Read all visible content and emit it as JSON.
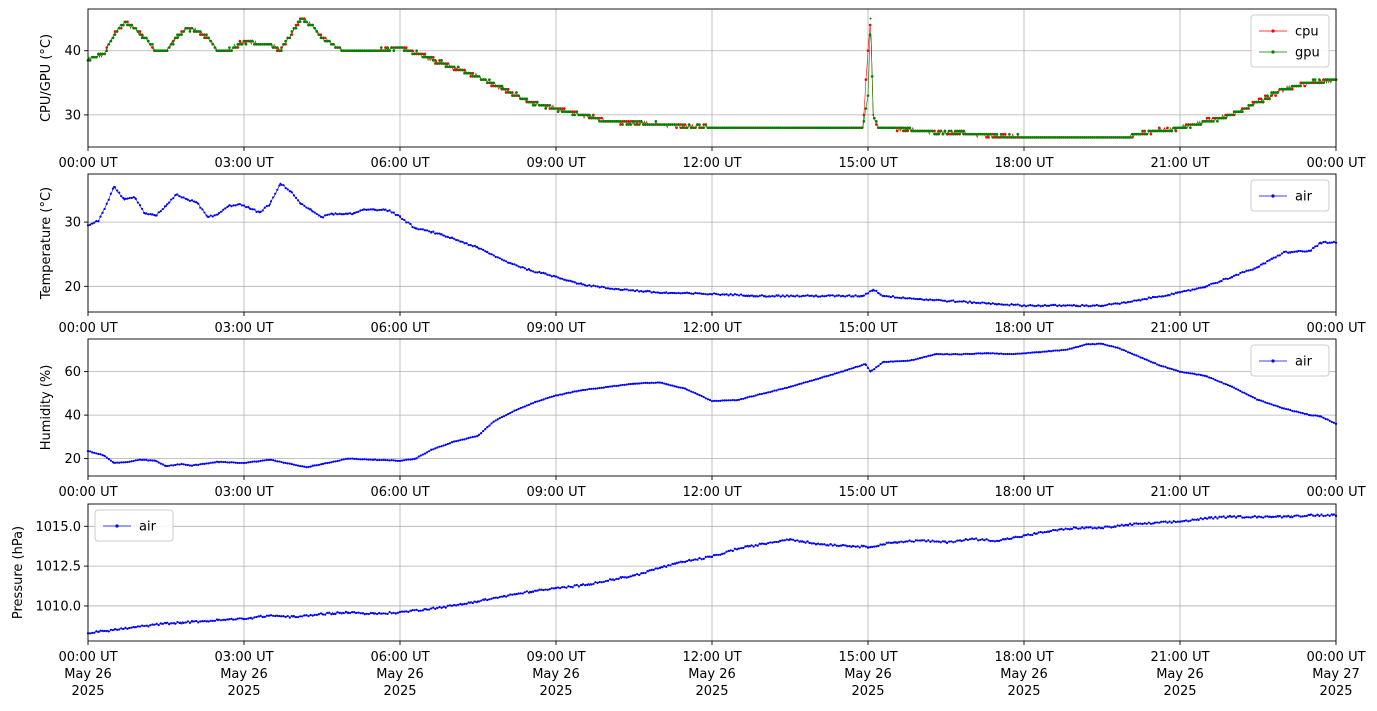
{
  "colors": {
    "cpu": "#ff0000",
    "gpu": "#008000",
    "air": "#0000ff",
    "grid": "#b0b0b0"
  },
  "chart_data": [
    {
      "type": "line",
      "ylabel": "CPU/GPU (°C)",
      "ylim": [
        25,
        46.5
      ],
      "yticks": [
        30,
        40
      ],
      "ytick_labels": [
        "30",
        "40"
      ],
      "xlim": [
        0,
        24
      ],
      "xticks": [
        0,
        3,
        6,
        9,
        12,
        15,
        18,
        21,
        24
      ],
      "xtick_labels": [
        "00:00 UT",
        "03:00 UT",
        "06:00 UT",
        "09:00 UT",
        "12:00 UT",
        "15:00 UT",
        "18:00 UT",
        "21:00 UT",
        "00:00 UT"
      ],
      "legend": "top-right",
      "grid": true,
      "series": [
        {
          "name": "cpu",
          "color": "#ff0000",
          "x": [
            0,
            0.3,
            0.5,
            0.7,
            0.9,
            1.1,
            1.3,
            1.5,
            1.7,
            1.9,
            2.1,
            2.3,
            2.5,
            2.7,
            2.9,
            3.1,
            3.3,
            3.5,
            3.7,
            3.9,
            4.1,
            4.3,
            4.5,
            4.7,
            4.9,
            5.1,
            5.5,
            6.0,
            6.2,
            6.5,
            7.0,
            7.5,
            8.0,
            8.5,
            9.0,
            9.5,
            10.0,
            11.0,
            12.0,
            13.0,
            14.0,
            14.9,
            15.0,
            15.05,
            15.1,
            15.2,
            15.5,
            16.0,
            17.0,
            18.0,
            19.0,
            20.0,
            20.5,
            21.0,
            21.5,
            22.0,
            22.5,
            23.0,
            23.5,
            24.0
          ],
          "y": [
            38.5,
            39.5,
            42.5,
            44.5,
            43.5,
            42,
            40,
            40,
            42,
            43.5,
            43,
            42,
            40,
            40,
            41,
            41.5,
            41,
            41,
            40,
            42.5,
            45,
            44,
            42,
            41,
            40,
            40,
            40,
            40.5,
            40,
            39,
            37.5,
            36,
            34,
            32,
            31,
            30,
            29,
            28.5,
            28,
            28,
            28,
            28,
            40,
            45,
            30,
            28,
            28,
            27.5,
            27,
            26.5,
            26.5,
            26.5,
            27.5,
            28,
            29,
            30,
            32,
            34,
            35,
            35.5
          ]
        },
        {
          "name": "gpu",
          "color": "#008000",
          "x": [
            0,
            0.3,
            0.5,
            0.7,
            0.9,
            1.1,
            1.3,
            1.5,
            1.7,
            1.9,
            2.1,
            2.3,
            2.5,
            2.7,
            2.9,
            3.1,
            3.3,
            3.5,
            3.7,
            3.9,
            4.1,
            4.3,
            4.5,
            4.7,
            4.9,
            5.1,
            5.5,
            6.0,
            6.2,
            6.5,
            7.0,
            7.5,
            8.0,
            8.5,
            9.0,
            9.5,
            10.0,
            11.0,
            12.0,
            13.0,
            14.0,
            14.9,
            15.0,
            15.05,
            15.1,
            15.2,
            15.5,
            16.0,
            17.0,
            18.0,
            19.0,
            20.0,
            20.5,
            21.0,
            21.5,
            22.0,
            22.5,
            23.0,
            23.5,
            24.0
          ],
          "y": [
            38.5,
            39.5,
            42.5,
            44.5,
            43.5,
            42,
            40,
            40,
            42,
            43.5,
            43,
            42,
            40,
            40,
            41,
            41.5,
            41,
            41,
            40,
            42.5,
            45,
            44,
            42,
            41,
            40,
            40,
            40,
            40.5,
            40,
            39,
            37.5,
            36,
            34,
            32,
            31,
            30,
            29,
            28.5,
            28,
            28,
            28,
            28,
            33,
            45,
            30,
            28,
            28,
            27.5,
            27,
            26.5,
            26.5,
            26.5,
            27.5,
            28,
            29,
            30,
            32,
            34,
            35,
            35.5
          ]
        }
      ]
    },
    {
      "type": "line",
      "ylabel": "Temperature (°C)",
      "ylim": [
        16,
        37.5
      ],
      "yticks": [
        20,
        30
      ],
      "ytick_labels": [
        "20",
        "30"
      ],
      "xlim": [
        0,
        24
      ],
      "xticks": [
        0,
        3,
        6,
        9,
        12,
        15,
        18,
        21,
        24
      ],
      "xtick_labels": [
        "00:00 UT",
        "03:00 UT",
        "06:00 UT",
        "09:00 UT",
        "12:00 UT",
        "15:00 UT",
        "18:00 UT",
        "21:00 UT",
        "00:00 UT"
      ],
      "legend": "top-right",
      "grid": true,
      "series": [
        {
          "name": "air",
          "color": "#0000ff",
          "x": [
            0,
            0.2,
            0.4,
            0.5,
            0.7,
            0.9,
            1.1,
            1.3,
            1.5,
            1.7,
            1.9,
            2.1,
            2.3,
            2.5,
            2.7,
            2.9,
            3.1,
            3.3,
            3.5,
            3.7,
            3.9,
            4.1,
            4.3,
            4.5,
            4.7,
            4.9,
            5.1,
            5.3,
            5.5,
            5.8,
            6.0,
            6.3,
            6.6,
            7.0,
            7.5,
            8.0,
            8.5,
            9.0,
            9.5,
            10.0,
            11.0,
            12.0,
            13.0,
            14.0,
            14.9,
            15.1,
            15.3,
            16.0,
            17.0,
            18.0,
            19.0,
            19.5,
            20.0,
            20.5,
            21.0,
            21.5,
            22.0,
            22.5,
            23.0,
            23.5,
            23.7,
            24.0
          ],
          "y": [
            29.5,
            30.2,
            33.5,
            35.5,
            33.5,
            33.8,
            31.3,
            31.0,
            32.5,
            34.3,
            33.6,
            33.0,
            30.8,
            31.2,
            32.5,
            32.8,
            32.2,
            31.5,
            32.8,
            36.0,
            34.8,
            32.8,
            31.8,
            30.8,
            31.3,
            31.2,
            31.3,
            32.0,
            32.0,
            31.8,
            30.8,
            29.0,
            28.5,
            27.5,
            26.0,
            24.0,
            22.5,
            21.5,
            20.3,
            19.7,
            19.0,
            18.8,
            18.5,
            18.5,
            18.5,
            19.5,
            18.5,
            18.0,
            17.5,
            17.0,
            17.0,
            17.0,
            17.5,
            18.3,
            19.0,
            20.0,
            21.5,
            23.0,
            25.3,
            25.5,
            26.8,
            26.8
          ]
        }
      ]
    },
    {
      "type": "line",
      "ylabel": "Humidity (%)",
      "ylim": [
        12,
        75
      ],
      "yticks": [
        20,
        40,
        60
      ],
      "ytick_labels": [
        "20",
        "40",
        "60"
      ],
      "xlim": [
        0,
        24
      ],
      "xticks": [
        0,
        3,
        6,
        9,
        12,
        15,
        18,
        21,
        24
      ],
      "xtick_labels": [
        "00:00 UT",
        "03:00 UT",
        "06:00 UT",
        "09:00 UT",
        "12:00 UT",
        "15:00 UT",
        "18:00 UT",
        "21:00 UT",
        "00:00 UT"
      ],
      "legend": "top-right",
      "grid": true,
      "series": [
        {
          "name": "air",
          "color": "#0000ff",
          "x": [
            0,
            0.3,
            0.5,
            0.8,
            1.0,
            1.3,
            1.5,
            1.8,
            2.0,
            2.5,
            3.0,
            3.5,
            3.8,
            4.2,
            4.5,
            5.0,
            5.5,
            6.0,
            6.3,
            6.6,
            7.0,
            7.5,
            7.8,
            8.2,
            8.6,
            9.0,
            9.5,
            10.0,
            10.5,
            11.0,
            11.5,
            12.0,
            12.5,
            13.0,
            13.5,
            14.0,
            14.5,
            14.95,
            15.05,
            15.3,
            15.8,
            16.3,
            16.8,
            17.3,
            17.8,
            18.3,
            18.8,
            19.2,
            19.5,
            19.8,
            20.2,
            20.6,
            21.0,
            21.5,
            22.0,
            22.5,
            23.0,
            23.5,
            23.7,
            24.0
          ],
          "y": [
            23.5,
            21.5,
            18.0,
            18.5,
            19.5,
            19.0,
            16.5,
            17.5,
            16.8,
            18.5,
            18.0,
            19.5,
            18.0,
            16.0,
            17.5,
            20.0,
            19.5,
            19.0,
            20.0,
            24.0,
            27.5,
            30.5,
            37.0,
            42.0,
            46.0,
            49.0,
            51.5,
            53.0,
            54.5,
            55.0,
            52.0,
            46.5,
            47.0,
            50.0,
            53.0,
            56.5,
            60.0,
            63.5,
            60.0,
            64.5,
            65.0,
            68.0,
            68.0,
            68.5,
            68.0,
            69.0,
            70.0,
            72.5,
            72.8,
            71.0,
            67.0,
            63.0,
            60.0,
            58.0,
            53.0,
            47.0,
            43.0,
            40.0,
            39.5,
            36.0
          ]
        }
      ]
    },
    {
      "type": "line",
      "ylabel": "Pressure (hPa)",
      "ylim": [
        1007.8,
        1016.4
      ],
      "yticks": [
        1010.0,
        1012.5,
        1015.0
      ],
      "ytick_labels": [
        "1010.0",
        "1012.5",
        "1015.0"
      ],
      "xlim": [
        0,
        24
      ],
      "xticks": [
        0,
        3,
        6,
        9,
        12,
        15,
        18,
        21,
        24
      ],
      "xtick_labels": [
        "00:00 UT",
        "03:00 UT",
        "06:00 UT",
        "09:00 UT",
        "12:00 UT",
        "15:00 UT",
        "18:00 UT",
        "21:00 UT",
        "00:00 UT"
      ],
      "xtick_dates": [
        "May 26",
        "May 26",
        "May 26",
        "May 26",
        "May 26",
        "May 26",
        "May 26",
        "May 26",
        "May 27"
      ],
      "xtick_years": [
        "2025",
        "2025",
        "2025",
        "2025",
        "2025",
        "2025",
        "2025",
        "2025",
        "2025"
      ],
      "legend": "top-left",
      "grid": true,
      "series": [
        {
          "name": "air",
          "color": "#0000ff",
          "x": [
            0,
            0.5,
            1.0,
            1.5,
            2.0,
            2.5,
            3.0,
            3.5,
            4.0,
            4.5,
            5.0,
            5.5,
            6.0,
            6.5,
            7.0,
            7.5,
            8.0,
            8.5,
            9.0,
            9.5,
            10.0,
            10.5,
            11.0,
            11.5,
            12.0,
            12.5,
            13.0,
            13.5,
            14.0,
            14.5,
            15.0,
            15.5,
            16.0,
            16.5,
            17.0,
            17.5,
            18.0,
            18.5,
            19.0,
            19.5,
            20.0,
            20.5,
            21.0,
            21.5,
            22.0,
            22.5,
            23.0,
            23.5,
            24.0
          ],
          "y": [
            1008.3,
            1008.5,
            1008.7,
            1008.9,
            1009.0,
            1009.1,
            1009.2,
            1009.4,
            1009.3,
            1009.5,
            1009.6,
            1009.5,
            1009.6,
            1009.8,
            1010.0,
            1010.3,
            1010.6,
            1010.9,
            1011.1,
            1011.3,
            1011.6,
            1011.9,
            1012.4,
            1012.8,
            1013.1,
            1013.6,
            1013.9,
            1014.2,
            1013.9,
            1013.8,
            1013.7,
            1014.0,
            1014.1,
            1014.0,
            1014.2,
            1014.1,
            1014.4,
            1014.7,
            1014.9,
            1014.9,
            1015.1,
            1015.2,
            1015.3,
            1015.5,
            1015.6,
            1015.6,
            1015.6,
            1015.7,
            1015.7
          ]
        }
      ]
    }
  ]
}
